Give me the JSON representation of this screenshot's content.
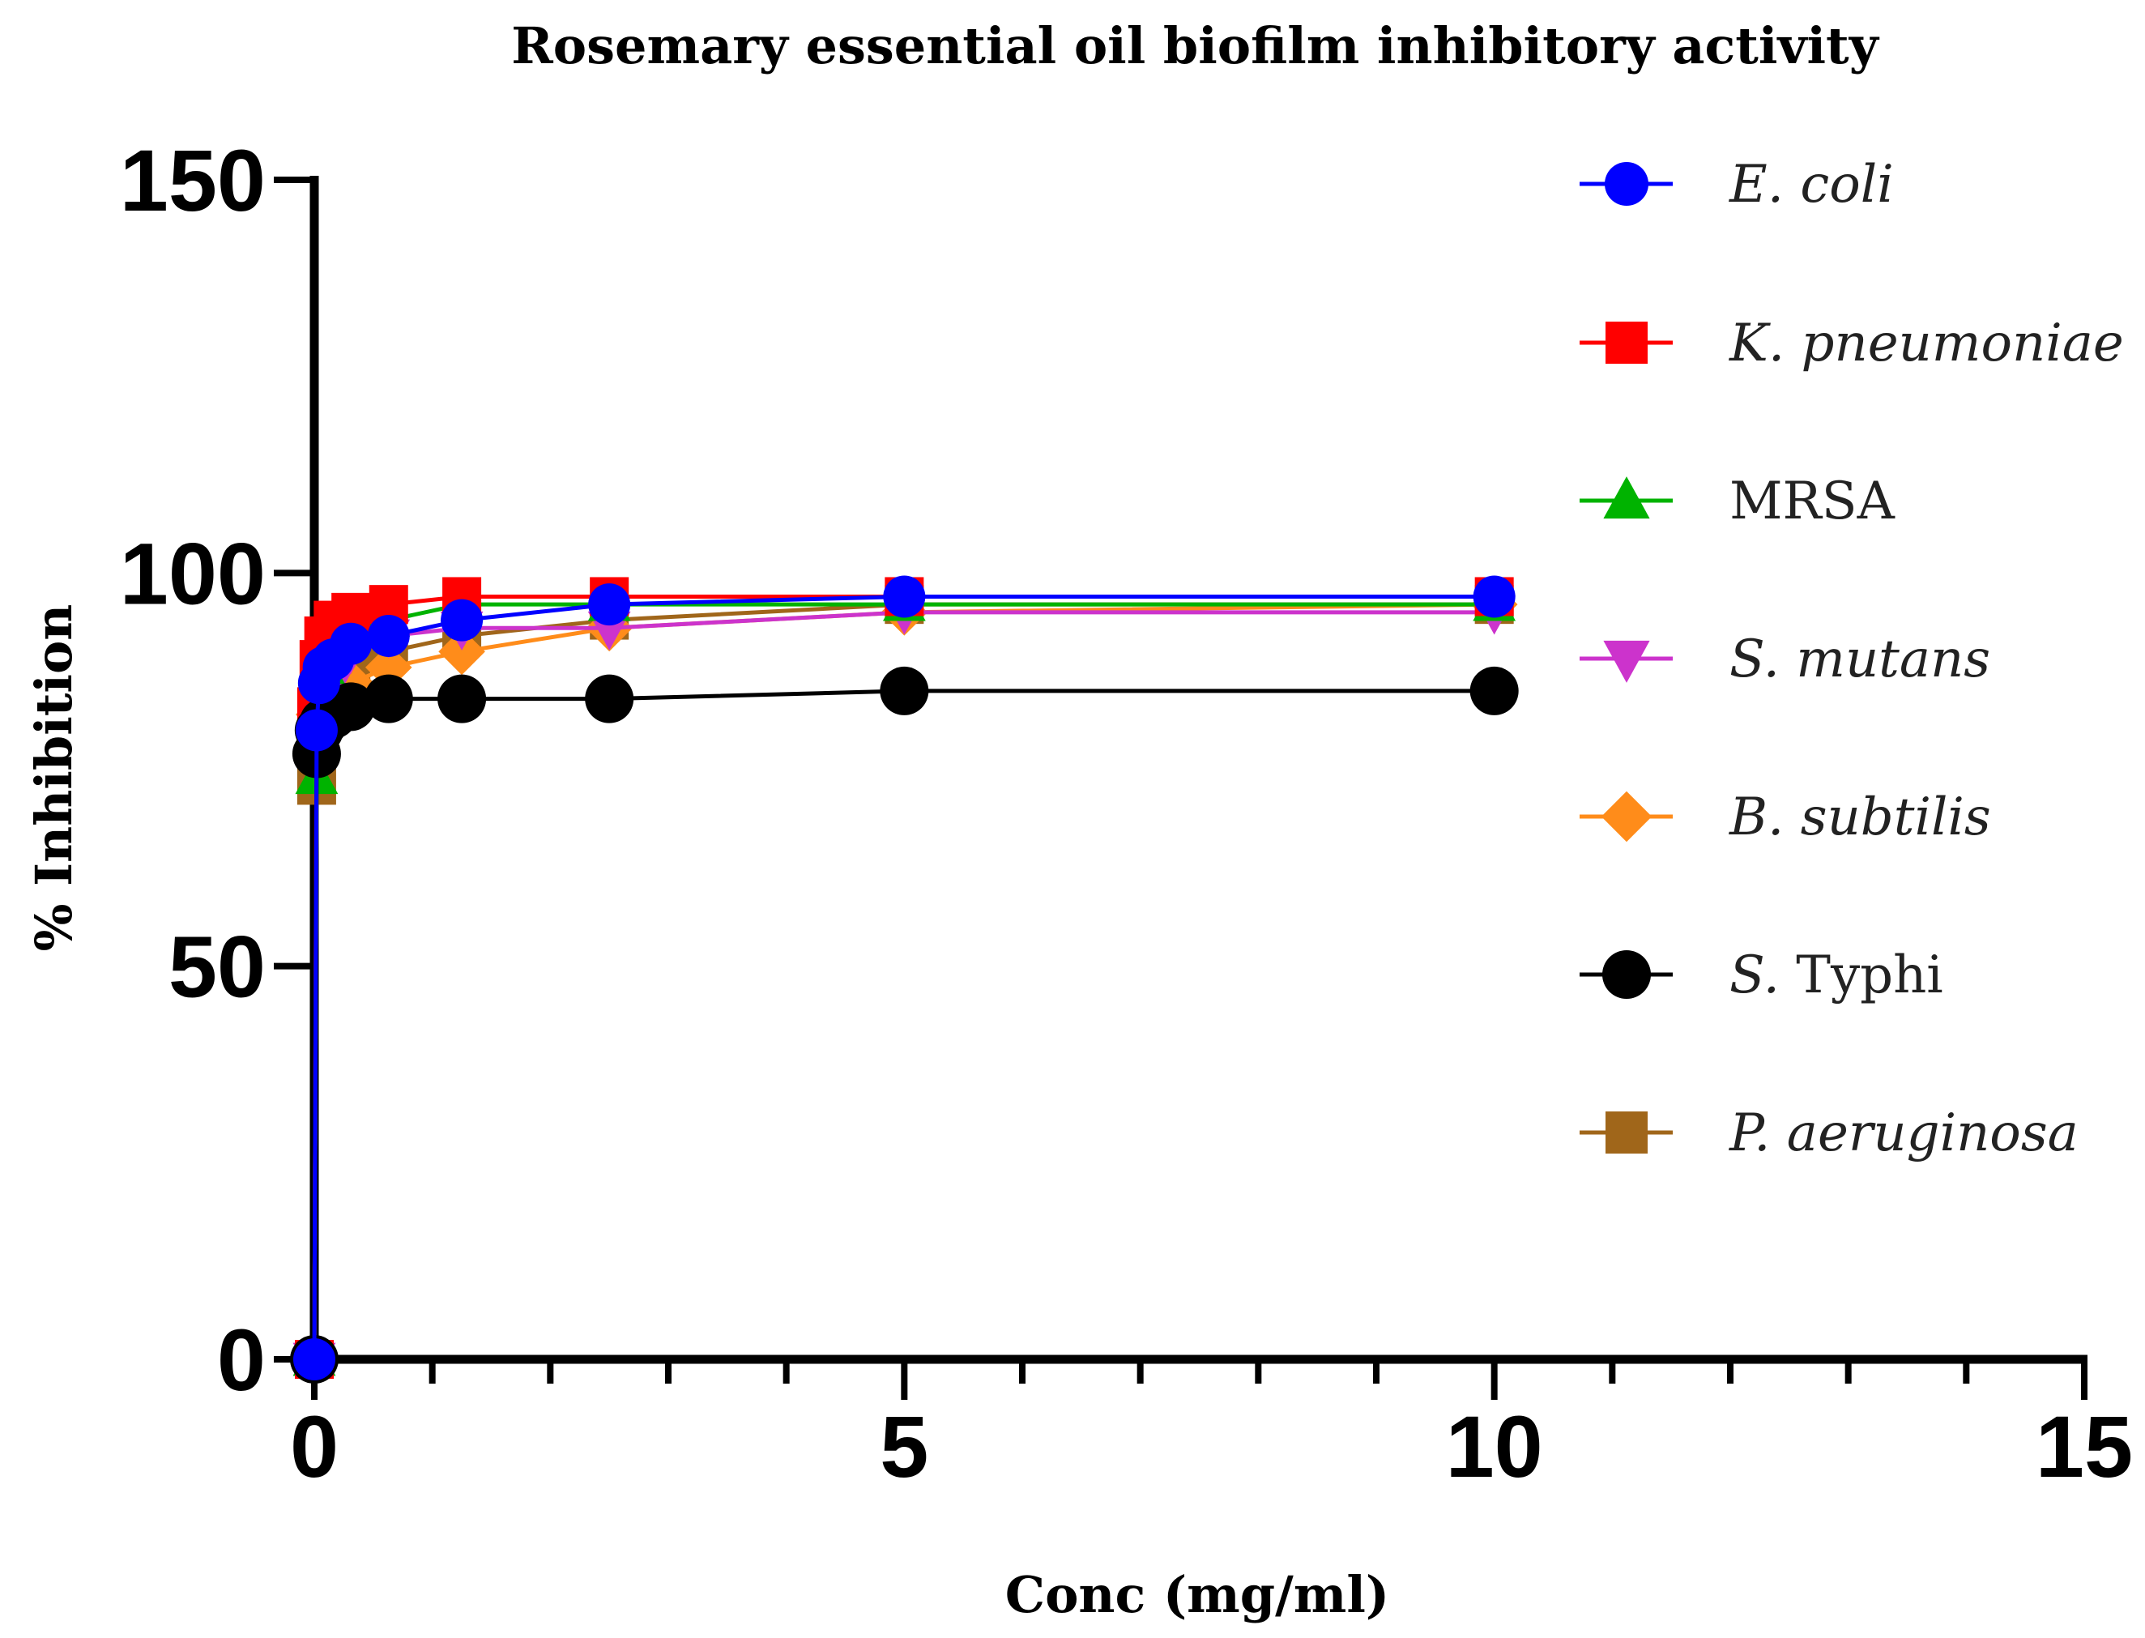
{
  "chart_data": {
    "type": "line",
    "title": "Rosemary essential oil biofilm inhibitory activity",
    "xlabel": "Conc (mg/ml)",
    "ylabel": "% Inhibition",
    "xlim": [
      0,
      15
    ],
    "ylim": [
      0,
      150
    ],
    "x_ticks": [
      "0",
      "5",
      "10",
      "15"
    ],
    "y_ticks": [
      "0",
      "50",
      "100",
      "150"
    ],
    "grid": false,
    "legend_position": "right",
    "x": [
      0,
      0.02,
      0.04,
      0.08,
      0.16,
      0.31,
      0.63,
      1.25,
      2.5,
      5,
      10
    ],
    "series": [
      {
        "name": "E. coli",
        "italic_part": "E. coli",
        "plain_part": "",
        "color": "#0000ff",
        "marker": "circle",
        "values": [
          0,
          80,
          86,
          88,
          89,
          91,
          92,
          94,
          96,
          97,
          97
        ]
      },
      {
        "name": "K. pneumoniae",
        "italic_part": "K. pneumoniae",
        "plain_part": "",
        "color": "#ff0000",
        "marker": "square",
        "values": [
          0,
          83,
          89,
          92,
          94,
          95,
          96,
          97,
          97,
          97,
          97
        ]
      },
      {
        "name": "MRSA",
        "italic_part": "",
        "plain_part": "MRSA",
        "color": "#00b300",
        "marker": "triangle-up",
        "values": [
          0,
          74,
          84,
          88,
          91,
          93,
          94,
          96,
          96,
          96,
          96
        ]
      },
      {
        "name": "S. mutans",
        "italic_part": "S. mutans",
        "plain_part": "",
        "color": "#cc33cc",
        "marker": "triangle-down",
        "values": [
          0,
          75,
          78,
          82,
          86,
          90,
          92,
          93,
          93,
          95,
          95
        ]
      },
      {
        "name": "B. subtilis",
        "italic_part": "B. subtilis",
        "plain_part": "",
        "color": "#ff8c1a",
        "marker": "diamond",
        "values": [
          0,
          78,
          82,
          84,
          85,
          86,
          88,
          90,
          93,
          95,
          96
        ]
      },
      {
        "name": "S. Typhi",
        "italic_part": "S.",
        "plain_part": "Typhi",
        "color": "#000000",
        "marker": "circle",
        "values": [
          0,
          77,
          80,
          81,
          82,
          83,
          84,
          84,
          84,
          85,
          85
        ]
      },
      {
        "name": "P. aeruginosa",
        "italic_part": "P. aeruginosa",
        "plain_part": "",
        "color": "#a0661a",
        "marker": "square",
        "values": [
          0,
          73,
          80,
          84,
          86,
          88,
          90,
          92,
          94,
          96,
          96
        ]
      }
    ]
  }
}
